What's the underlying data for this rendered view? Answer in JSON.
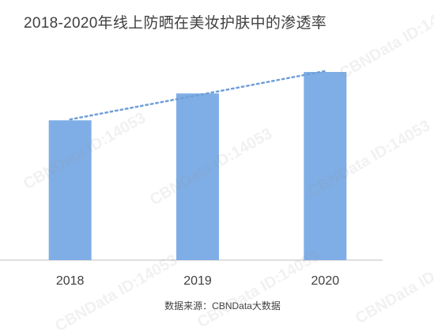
{
  "title": "2018-2020年线上防晒在美妆护肤中的渗透率",
  "source": "数据来源：CBNData大数据",
  "watermark": "CBNData ID:14053",
  "colors": {
    "bar": "#7faee6",
    "trend": "#6f9fd8",
    "axis": "#bfbfbf",
    "text": "#404040"
  },
  "chart_data": {
    "type": "bar",
    "categories": [
      "2018",
      "2019",
      "2020"
    ],
    "values": [
      52,
      62,
      70
    ],
    "ylim": [
      0,
      85
    ],
    "trendline": "linear",
    "title": "2018-2020年线上防晒在美妆护肤中的渗透率",
    "xlabel": "",
    "ylabel": "",
    "grid": false,
    "legend": "none"
  }
}
